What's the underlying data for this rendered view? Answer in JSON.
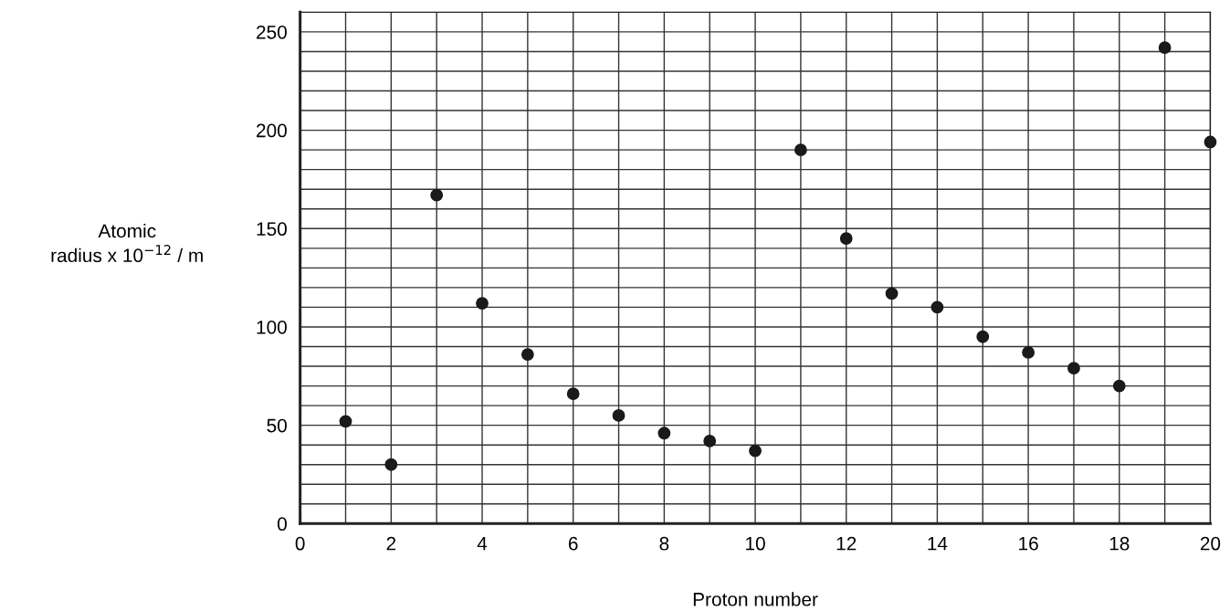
{
  "chart_data": {
    "type": "scatter",
    "xlabel": "Proton number",
    "ylabel": "Atomic\nradius x 10$^{−12}$ / m",
    "x": [
      1,
      2,
      3,
      4,
      5,
      6,
      7,
      8,
      9,
      10,
      11,
      12,
      13,
      14,
      15,
      16,
      17,
      18,
      19,
      20
    ],
    "series": [
      {
        "color": "#1a1a1a",
        "values": [
          52,
          30,
          167,
          112,
          86,
          66,
          55,
          46,
          42,
          37,
          190,
          145,
          117,
          110,
          95,
          87,
          79,
          70,
          242,
          194
        ]
      }
    ],
    "marker": "circle",
    "grid": true,
    "xlim": [
      0,
      20
    ],
    "ylim": [
      0,
      260
    ],
    "xticks": [
      0,
      {
        "value": 1,
        "label": null
      },
      2,
      {
        "value": 3,
        "label": null
      },
      4,
      {
        "value": 5,
        "label": null
      },
      6,
      {
        "value": 7,
        "label": null
      },
      8,
      {
        "value": 9,
        "label": null
      },
      10,
      {
        "value": 11,
        "label": null
      },
      12,
      {
        "value": 13,
        "label": null
      },
      14,
      {
        "value": 15,
        "label": null
      },
      16,
      {
        "value": 17,
        "label": null
      },
      18,
      {
        "value": 19,
        "label": null
      },
      20
    ],
    "yticks": [
      0,
      {
        "value": 10,
        "label": null
      },
      {
        "value": 20,
        "label": null
      },
      {
        "value": 30,
        "label": null
      },
      {
        "value": 40,
        "label": null
      },
      50,
      {
        "value": 60,
        "label": null
      },
      {
        "value": 70,
        "label": null
      },
      {
        "value": 80,
        "label": null
      },
      {
        "value": 90,
        "label": null
      },
      100,
      {
        "value": 110,
        "label": null
      },
      {
        "value": 120,
        "label": null
      },
      {
        "value": 130,
        "label": null
      },
      {
        "value": 140,
        "label": null
      },
      150,
      {
        "value": 160,
        "label": null
      },
      {
        "value": 170,
        "label": null
      },
      {
        "value": 180,
        "label": null
      },
      {
        "value": 190,
        "label": null
      },
      200,
      {
        "value": 210,
        "label": null
      },
      {
        "value": 220,
        "label": null
      },
      {
        "value": 230,
        "label": null
      },
      {
        "value": 240,
        "label": null
      },
      250,
      {
        "value": 260,
        "label": null
      }
    ]
  }
}
